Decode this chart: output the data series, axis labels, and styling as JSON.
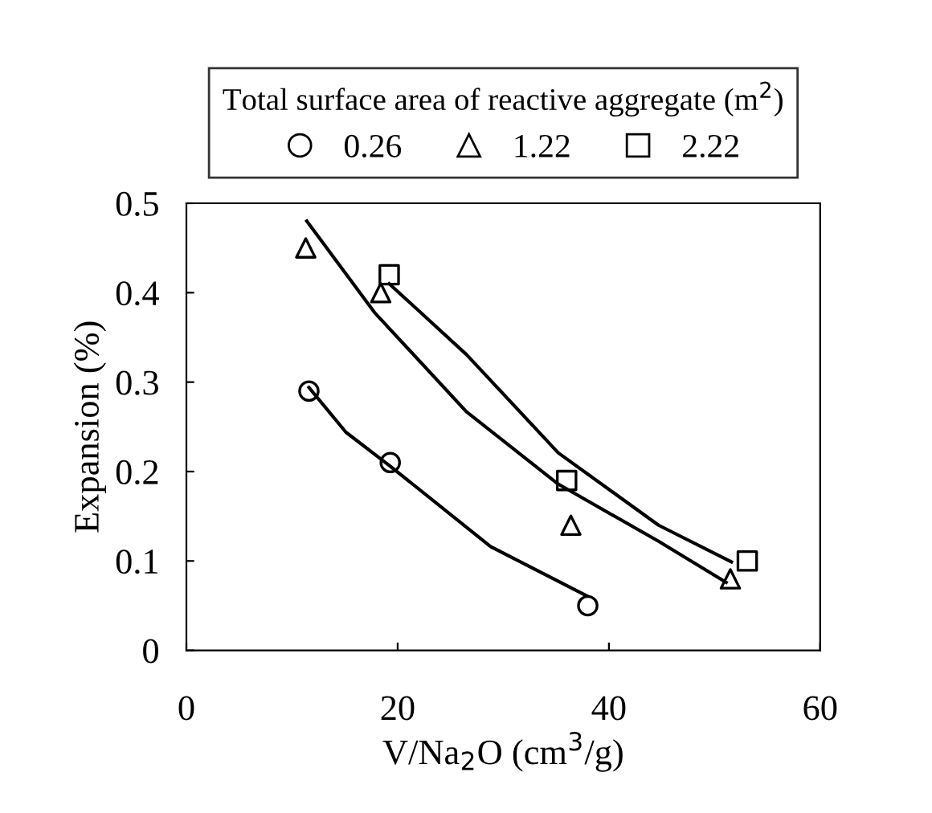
{
  "chart_data": {
    "type": "scatter",
    "xlabel": "V/Na$_{2}$O (cm$^{3}$/g)",
    "ylabel": "Expansion (%)",
    "legend_title": "Total surface area of reactive aggregate (m$^{2}$)",
    "legend": "top",
    "grid": false,
    "xlim": [
      0,
      60
    ],
    "xticks": [
      0,
      20,
      40,
      60
    ],
    "ylim": [
      0,
      0.5
    ],
    "yticks": [
      0,
      0.1,
      0.2,
      0.3,
      0.4,
      0.5
    ],
    "series": [
      {
        "name": "0.26",
        "marker": "circle",
        "color": "#000000",
        "x": [
          11.6,
          19.3,
          38.0
        ],
        "values": [
          0.29,
          0.21,
          0.05
        ]
      },
      {
        "name": "1.22",
        "marker": "triangle",
        "color": "#000000",
        "x": [
          11.3,
          18.4,
          36.4,
          51.5
        ],
        "values": [
          0.45,
          0.4,
          0.14,
          0.08
        ]
      },
      {
        "name": "2.22",
        "marker": "square",
        "color": "#000000",
        "x": [
          19.2,
          36.0,
          53.1
        ],
        "values": [
          0.42,
          0.19,
          0.1
        ]
      },
      {
        "type": "line",
        "marker": "none",
        "color": "#000000",
        "x": [
          11.6,
          15.1,
          19.3,
          28.8,
          37.9
        ],
        "values": [
          0.294,
          0.244,
          0.206,
          0.116,
          0.061
        ]
      },
      {
        "type": "line",
        "marker": "none",
        "color": "#000000",
        "x": [
          11.4,
          17.8,
          26.5,
          35.2,
          44.7,
          51.1
        ],
        "values": [
          0.48,
          0.378,
          0.267,
          0.186,
          0.122,
          0.076
        ]
      },
      {
        "type": "line",
        "marker": "none",
        "color": "#000000",
        "x": [
          19.2,
          26.5,
          35.2,
          44.7,
          51.6
        ],
        "values": [
          0.41,
          0.331,
          0.221,
          0.14,
          0.099
        ]
      }
    ]
  }
}
